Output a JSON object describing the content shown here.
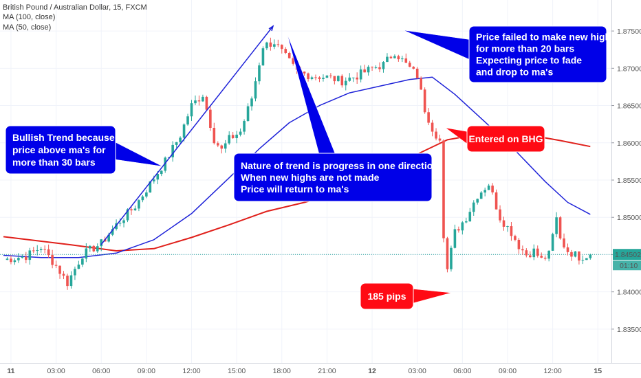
{
  "header": {
    "symbol": "British Pound / Australian Dollar, 15, FXCM",
    "ma100_label": "MA (100, close)",
    "ma50_label": "MA (50, close)"
  },
  "price_tag": {
    "value": "1.84502",
    "countdown": "01:10"
  },
  "colors": {
    "bull": "#26a69a",
    "bear": "#ef5350",
    "ma50": "#1e22d8",
    "ma100": "#e0201b",
    "callout_blue": "#0000e8",
    "callout_red": "#ff0a14",
    "price_line": "#26a69a"
  },
  "annotations": [
    {
      "id": "bullish",
      "color": "blue",
      "lines": [
        "Bullish Trend because",
        "price above ma's for",
        "more than 30 bars"
      ]
    },
    {
      "id": "nature",
      "color": "blue",
      "lines": [
        "Nature of trend is progress in one direction",
        "When new highs are not made",
        "Price will return to ma's"
      ]
    },
    {
      "id": "failed",
      "color": "blue",
      "lines": [
        "Price failed to make new high",
        "for more than 20 bars",
        "Expecting price to fade",
        "and drop to ma's"
      ]
    },
    {
      "id": "entered",
      "color": "red",
      "lines": [
        "Entered on BHG"
      ]
    },
    {
      "id": "pips",
      "color": "red",
      "lines": [
        "185 pips"
      ]
    }
  ],
  "chart_data": {
    "type": "candlestick",
    "title": "British Pound / Australian Dollar, 15, FXCM",
    "ylim": [
      1.8325,
      1.8775
    ],
    "y_ticks": [
      "1.83500",
      "1.84000",
      "1.84500",
      "1.85000",
      "1.85500",
      "1.86000",
      "1.86500",
      "1.87000",
      "1.87500"
    ],
    "x_ticks": [
      {
        "label": "11",
        "bar": 2
      },
      {
        "label": "03:00",
        "bar": 14
      },
      {
        "label": "06:00",
        "bar": 26
      },
      {
        "label": "09:00",
        "bar": 38
      },
      {
        "label": "12:00",
        "bar": 50
      },
      {
        "label": "15:00",
        "bar": 62
      },
      {
        "label": "18:00",
        "bar": 74
      },
      {
        "label": "21:00",
        "bar": 86
      },
      {
        "label": "12",
        "bar": 98
      },
      {
        "label": "03:00",
        "bar": 110
      },
      {
        "label": "06:00",
        "bar": 122
      },
      {
        "label": "09:00",
        "bar": 134
      },
      {
        "label": "12:00",
        "bar": 146
      },
      {
        "label": "15",
        "bar": 158
      }
    ],
    "last_price": 1.84502,
    "series": [
      {
        "name": "MA (100, close)",
        "points": [
          [
            0,
            1.8474
          ],
          [
            18,
            1.8463
          ],
          [
            30,
            1.8455
          ],
          [
            40,
            1.8458
          ],
          [
            50,
            1.8473
          ],
          [
            60,
            1.849
          ],
          [
            70,
            1.8508
          ],
          [
            80,
            1.852
          ],
          [
            90,
            1.8535
          ],
          [
            100,
            1.8552
          ],
          [
            108,
            1.858
          ],
          [
            118,
            1.8604
          ],
          [
            128,
            1.8613
          ],
          [
            138,
            1.8612
          ],
          [
            148,
            1.8603
          ],
          [
            156,
            1.8595
          ]
        ]
      },
      {
        "name": "MA (50, close)",
        "points": [
          [
            0,
            1.8449
          ],
          [
            10,
            1.8446
          ],
          [
            20,
            1.8446
          ],
          [
            30,
            1.8452
          ],
          [
            40,
            1.847
          ],
          [
            50,
            1.8505
          ],
          [
            60,
            1.8553
          ],
          [
            68,
            1.8592
          ],
          [
            76,
            1.8627
          ],
          [
            84,
            1.865
          ],
          [
            92,
            1.8667
          ],
          [
            100,
            1.8676
          ],
          [
            108,
            1.8685
          ],
          [
            114,
            1.8688
          ],
          [
            120,
            1.8665
          ],
          [
            128,
            1.8628
          ],
          [
            136,
            1.859
          ],
          [
            144,
            1.8548
          ],
          [
            150,
            1.852
          ],
          [
            156,
            1.8504
          ]
        ]
      }
    ],
    "anchors": [
      [
        0,
        1.8443
      ],
      [
        6,
        1.8448
      ],
      [
        10,
        1.846
      ],
      [
        14,
        1.8435
      ],
      [
        17,
        1.8412
      ],
      [
        21,
        1.845
      ],
      [
        26,
        1.8465
      ],
      [
        30,
        1.849
      ],
      [
        35,
        1.8515
      ],
      [
        39,
        1.8545
      ],
      [
        43,
        1.8575
      ],
      [
        47,
        1.861
      ],
      [
        50,
        1.865
      ],
      [
        53,
        1.8665
      ],
      [
        56,
        1.8605
      ],
      [
        58,
        1.859
      ],
      [
        60,
        1.8605
      ],
      [
        63,
        1.8615
      ],
      [
        66,
        1.866
      ],
      [
        69,
        1.873
      ],
      [
        72,
        1.8735
      ],
      [
        75,
        1.8715
      ],
      [
        78,
        1.8695
      ],
      [
        82,
        1.869
      ],
      [
        86,
        1.8688
      ],
      [
        90,
        1.8683
      ],
      [
        94,
        1.869
      ],
      [
        98,
        1.87
      ],
      [
        101,
        1.8705
      ],
      [
        104,
        1.8722
      ],
      [
        107,
        1.8705
      ],
      [
        110,
        1.869
      ],
      [
        112,
        1.8645
      ],
      [
        114,
        1.862
      ],
      [
        116,
        1.8603
      ],
      [
        117,
        1.8472
      ],
      [
        118,
        1.843
      ],
      [
        120,
        1.848
      ],
      [
        123,
        1.85
      ],
      [
        126,
        1.853
      ],
      [
        129,
        1.8545
      ],
      [
        132,
        1.85
      ],
      [
        135,
        1.848
      ],
      [
        137,
        1.8462
      ],
      [
        139,
        1.845
      ],
      [
        141,
        1.8455
      ],
      [
        143,
        1.8443
      ],
      [
        145,
        1.845
      ],
      [
        147,
        1.85
      ],
      [
        148,
        1.847
      ],
      [
        150,
        1.8455
      ],
      [
        153,
        1.8447
      ],
      [
        156,
        1.845
      ]
    ]
  }
}
